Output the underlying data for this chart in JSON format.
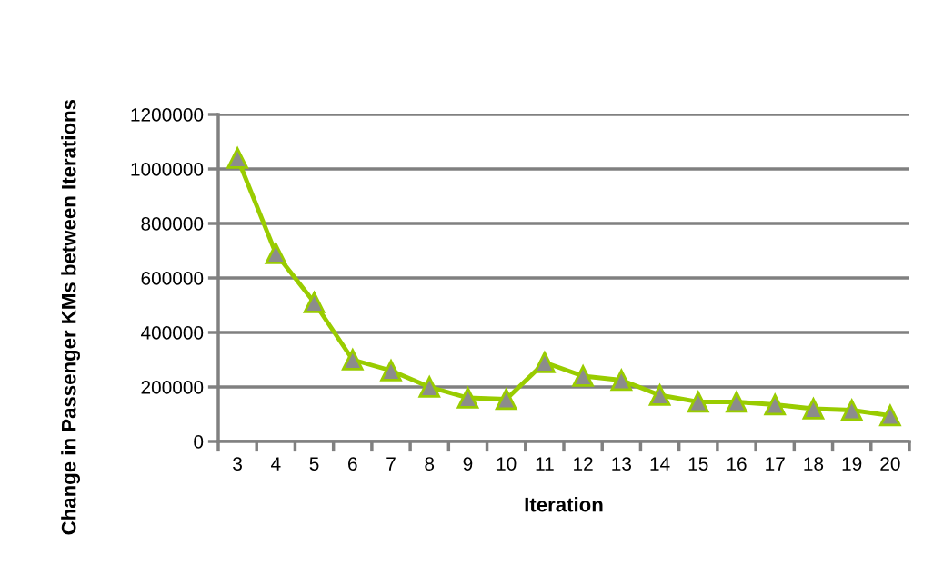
{
  "chart_data": {
    "type": "line",
    "xlabel": "Iteration",
    "ylabel": "Change in Passenger KMs between Iterations",
    "categories": [
      "3",
      "4",
      "5",
      "6",
      "7",
      "8",
      "9",
      "10",
      "11",
      "12",
      "13",
      "14",
      "15",
      "16",
      "17",
      "18",
      "19",
      "20"
    ],
    "series": [
      {
        "color": "#99cc00",
        "values": [
          1040000,
          690000,
          510000,
          300000,
          260000,
          200000,
          160000,
          155000,
          290000,
          240000,
          225000,
          170000,
          145000,
          145000,
          135000,
          120000,
          115000,
          95000
        ]
      }
    ],
    "ylim": [
      0,
      1200000
    ],
    "yticks": [
      0,
      200000,
      400000,
      600000,
      800000,
      1000000,
      1200000
    ],
    "grid": "y",
    "legend": false,
    "marker": "triangle",
    "line_style": "solid"
  }
}
